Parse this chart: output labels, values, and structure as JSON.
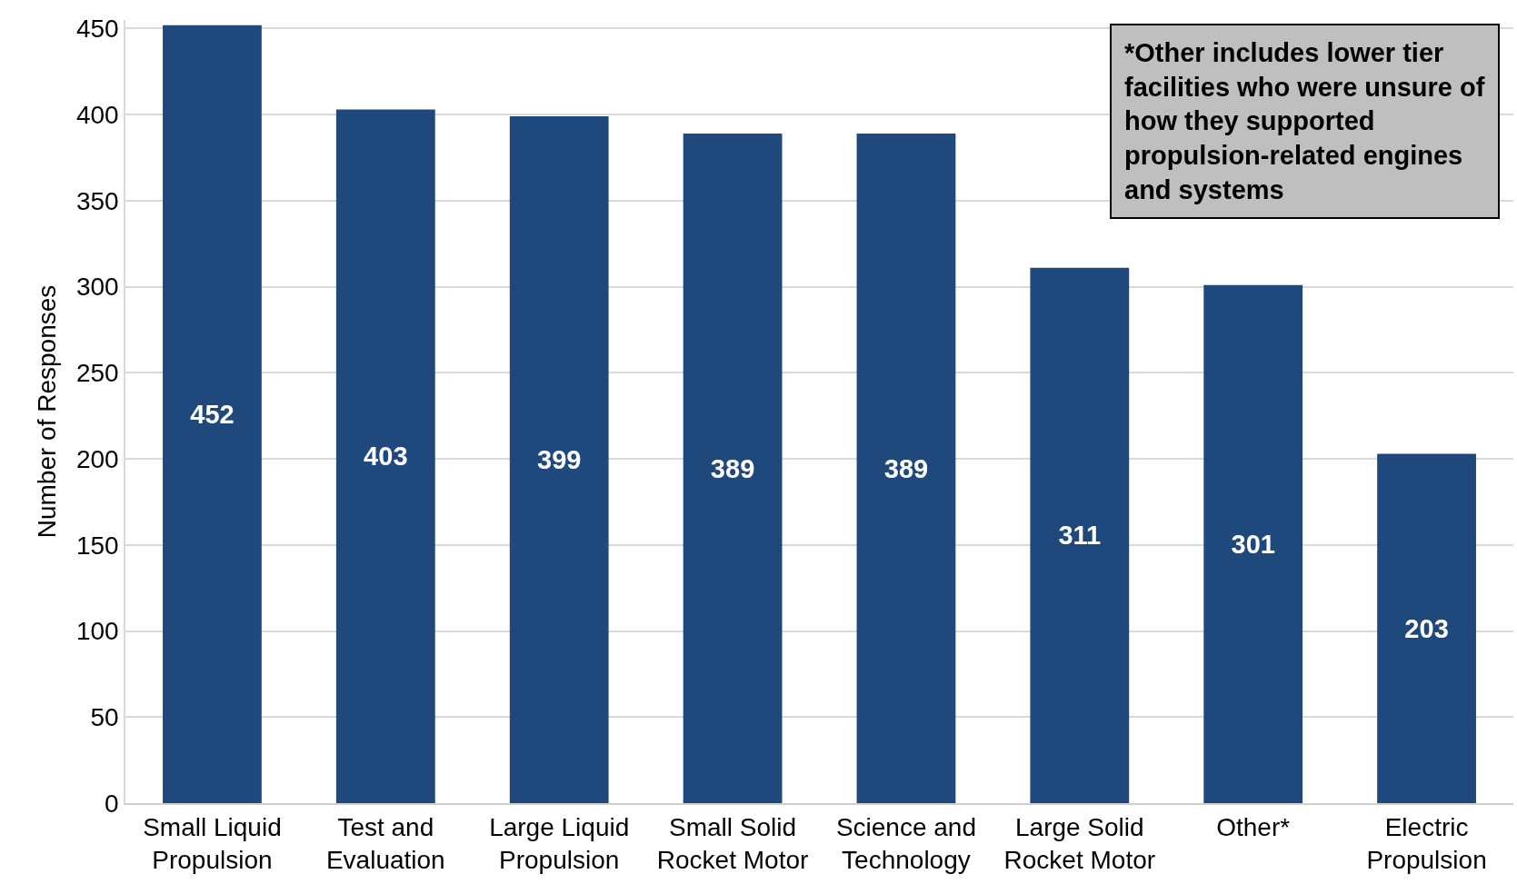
{
  "chart_data": {
    "type": "bar",
    "categories": [
      "Small Liquid Propulsion",
      "Test and Evaluation",
      "Large Liquid Propulsion",
      "Small Solid Rocket Motor",
      "Science and Technology",
      "Large Solid Rocket Motor",
      "Other*",
      "Electric Propulsion"
    ],
    "values": [
      452,
      403,
      399,
      389,
      389,
      311,
      301,
      203
    ],
    "color": "#1f497d",
    "ylabel": "Number of Responses",
    "ylim": [
      0,
      455
    ],
    "yticks": [
      0,
      50,
      100,
      150,
      200,
      250,
      300,
      350,
      400,
      450
    ],
    "grid": "y",
    "data_labels": true,
    "annotations": [
      "*Other includes lower tier facilities who were unsure of how they supported propulsion-related engines and systems"
    ]
  }
}
